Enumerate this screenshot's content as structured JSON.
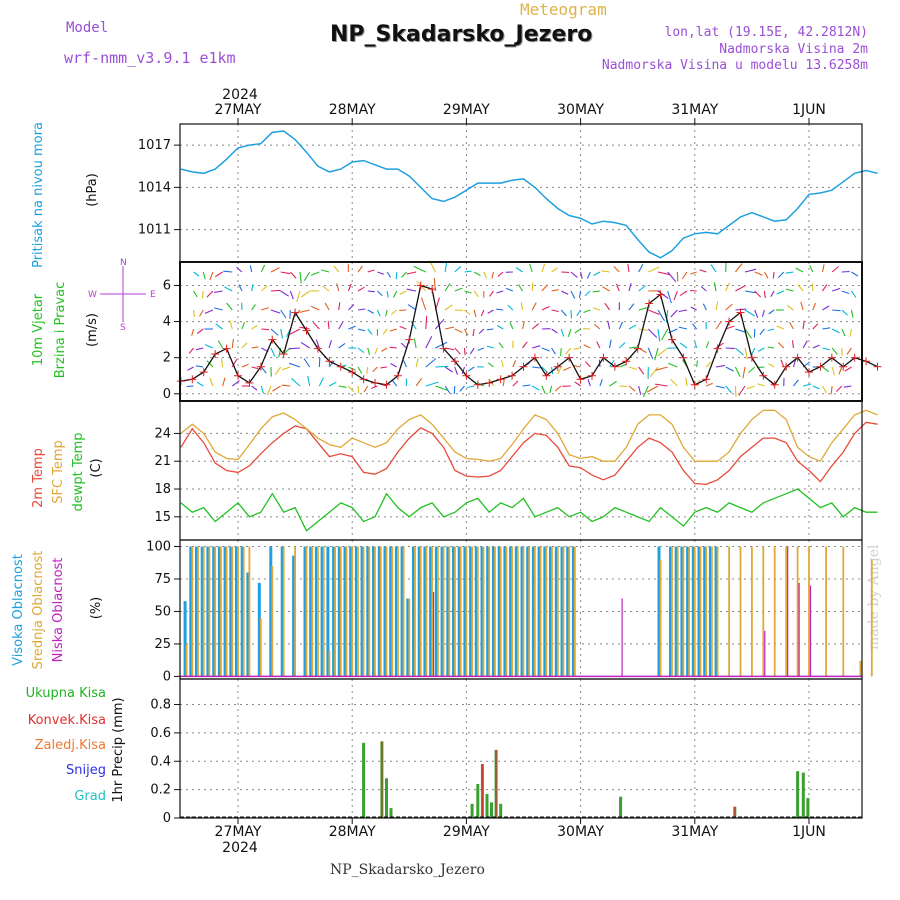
{
  "header": {
    "model_label": "Model",
    "model_name": "wrf-nmm_v3.9.1 e1km",
    "title": "NP_Skadarsko_Jezero",
    "meteogram_label": "Meteogram",
    "coords": "lon,lat (19.15E, 42.2812N)",
    "elevation": "Nadmorska Visina 2m",
    "model_elevation": "Nadmorska Visina u modelu 13.6258m"
  },
  "footer": {
    "station": "NP_Skadarsko_Jezero",
    "credit": "made by Angel"
  },
  "colors": {
    "pressure": "#1ea0e0",
    "t2m": "#e84a3a",
    "tsfc": "#e0a838",
    "dewpt": "#22c022",
    "high_cloud": "#1ea0e0",
    "mid_cloud": "#e0a838",
    "low_cloud": "#c020c0",
    "precip_total": "#3aa030",
    "precip_conv": "#e03030",
    "wind_speed": "#111111",
    "wind_pts": "#e02020"
  },
  "time_axis": {
    "year_top": "2024",
    "year_bottom": "2024",
    "days": [
      "27MAY",
      "28MAY",
      "29MAY",
      "30MAY",
      "31MAY",
      "1JUN"
    ]
  },
  "panel_pressure": {
    "label": "Pritisak na nivou mora",
    "unit": "(hPa)",
    "yticks": [
      "1011",
      "1014",
      "1017"
    ],
    "chart_data": {
      "type": "line",
      "ylim": [
        1008.7,
        1018.5
      ],
      "x_days": [
        -0.5,
        -0.4,
        -0.3,
        -0.2,
        -0.1,
        0.0,
        0.1,
        0.2,
        0.3,
        0.4,
        0.5,
        0.6,
        0.7,
        0.8,
        0.9,
        1.0,
        1.1,
        1.2,
        1.3,
        1.4,
        1.5,
        1.6,
        1.7,
        1.8,
        1.9,
        2.0,
        2.1,
        2.2,
        2.3,
        2.4,
        2.5,
        2.6,
        2.7,
        2.8,
        2.9,
        3.0,
        3.1,
        3.2,
        3.3,
        3.4,
        3.5,
        3.6,
        3.7,
        3.8,
        3.9,
        4.0,
        4.1,
        4.2,
        4.3,
        4.4,
        4.5,
        4.6,
        4.7,
        4.8,
        4.9,
        5.0,
        5.1,
        5.2,
        5.3,
        5.4,
        5.5,
        5.6
      ],
      "values": [
        1015.3,
        1015.1,
        1015.0,
        1015.3,
        1016.0,
        1016.8,
        1017.0,
        1017.1,
        1017.9,
        1018.0,
        1017.4,
        1016.5,
        1015.5,
        1015.1,
        1015.3,
        1015.8,
        1015.9,
        1015.6,
        1015.3,
        1015.3,
        1014.8,
        1014.0,
        1013.2,
        1013.0,
        1013.3,
        1013.8,
        1014.3,
        1014.3,
        1014.3,
        1014.5,
        1014.6,
        1014.0,
        1013.2,
        1012.5,
        1012.0,
        1011.8,
        1011.4,
        1011.6,
        1011.5,
        1011.3,
        1010.3,
        1009.4,
        1009.0,
        1009.5,
        1010.4,
        1010.7,
        1010.8,
        1010.7,
        1011.3,
        1011.9,
        1012.2,
        1011.9,
        1011.6,
        1011.7,
        1012.5,
        1013.5,
        1013.6,
        1013.8,
        1014.4,
        1015.0,
        1015.2,
        1015.0
      ]
    }
  },
  "panel_wind": {
    "label_line1": "10m Vjetar",
    "label_line2": "Brzina i Pravac",
    "unit": "(m/s)",
    "yticks": [
      "0",
      "2",
      "4",
      "6"
    ],
    "compass": {
      "n": "N",
      "s": "S",
      "w": "W",
      "e": "E"
    },
    "chart_data": {
      "type": "line",
      "ylim": [
        -0.4,
        7.3
      ],
      "x_days": [
        -0.5,
        -0.4,
        -0.3,
        -0.2,
        -0.1,
        0.0,
        0.1,
        0.2,
        0.3,
        0.4,
        0.5,
        0.6,
        0.7,
        0.8,
        0.9,
        1.0,
        1.1,
        1.2,
        1.3,
        1.4,
        1.5,
        1.6,
        1.7,
        1.8,
        1.9,
        2.0,
        2.1,
        2.2,
        2.3,
        2.4,
        2.5,
        2.6,
        2.7,
        2.8,
        2.9,
        3.0,
        3.1,
        3.2,
        3.3,
        3.4,
        3.5,
        3.6,
        3.7,
        3.8,
        3.9,
        4.0,
        4.1,
        4.2,
        4.3,
        4.4,
        4.5,
        4.6,
        4.7,
        4.8,
        4.9,
        5.0,
        5.1,
        5.2,
        5.3,
        5.4,
        5.5,
        5.6
      ],
      "values": [
        0.7,
        0.8,
        1.2,
        2.2,
        2.5,
        1.0,
        0.6,
        1.5,
        3.0,
        2.2,
        4.5,
        3.5,
        2.5,
        1.8,
        1.5,
        1.2,
        0.8,
        0.6,
        0.5,
        1.0,
        3.0,
        6.0,
        5.8,
        2.5,
        1.8,
        1.0,
        0.5,
        0.6,
        0.8,
        1.0,
        1.5,
        2.0,
        1.0,
        1.5,
        2.0,
        0.8,
        1.0,
        2.0,
        1.5,
        1.8,
        2.5,
        5.0,
        5.5,
        3.0,
        2.0,
        0.5,
        0.8,
        2.5,
        4.0,
        4.5,
        2.0,
        1.0,
        0.5,
        1.5,
        2.0,
        1.2,
        1.5,
        2.0,
        1.5,
        2.0,
        1.8,
        1.5
      ]
    }
  },
  "panel_temp": {
    "label_t2m": "2m Temp",
    "label_tsfc": "SFC Temp",
    "label_dewpt": "dewpt Temp",
    "unit": "(C)",
    "yticks": [
      "15",
      "18",
      "21",
      "24"
    ],
    "chart_data": {
      "type": "line",
      "ylim": [
        12.5,
        27.5
      ],
      "x_days": [
        -0.5,
        -0.4,
        -0.3,
        -0.2,
        -0.1,
        0.0,
        0.1,
        0.2,
        0.3,
        0.4,
        0.5,
        0.6,
        0.7,
        0.8,
        0.9,
        1.0,
        1.1,
        1.2,
        1.3,
        1.4,
        1.5,
        1.6,
        1.7,
        1.8,
        1.9,
        2.0,
        2.1,
        2.2,
        2.3,
        2.4,
        2.5,
        2.6,
        2.7,
        2.8,
        2.9,
        3.0,
        3.1,
        3.2,
        3.3,
        3.4,
        3.5,
        3.6,
        3.7,
        3.8,
        3.9,
        4.0,
        4.1,
        4.2,
        4.3,
        4.4,
        4.5,
        4.6,
        4.7,
        4.8,
        4.9,
        5.0,
        5.1,
        5.2,
        5.3,
        5.4,
        5.5,
        5.6
      ],
      "series": [
        {
          "name": "2m Temp",
          "values": [
            22.5,
            24.5,
            23.0,
            20.8,
            20.0,
            19.8,
            20.5,
            21.8,
            23.0,
            24.0,
            24.8,
            24.5,
            23.0,
            21.5,
            21.8,
            21.5,
            19.8,
            19.6,
            20.2,
            22.0,
            23.5,
            24.6,
            24.0,
            22.5,
            20.0,
            19.4,
            19.3,
            19.4,
            20.0,
            21.5,
            23.0,
            24.0,
            23.8,
            22.5,
            20.5,
            20.3,
            19.5,
            19.0,
            19.5,
            21.0,
            22.5,
            23.5,
            23.0,
            22.0,
            20.0,
            18.6,
            18.5,
            19.0,
            20.0,
            21.5,
            22.5,
            23.5,
            23.5,
            23.0,
            21.0,
            20.0,
            18.8,
            20.5,
            22.0,
            24.0,
            25.2,
            25.0
          ]
        },
        {
          "name": "SFC Temp",
          "values": [
            24.0,
            25.0,
            24.0,
            22.0,
            21.3,
            21.2,
            22.8,
            24.5,
            25.8,
            26.2,
            25.5,
            24.5,
            23.5,
            22.8,
            22.5,
            23.5,
            23.0,
            22.5,
            23.0,
            24.5,
            25.5,
            26.0,
            25.0,
            23.5,
            22.0,
            21.3,
            21.2,
            21.0,
            21.3,
            22.8,
            24.5,
            26.0,
            25.5,
            24.0,
            21.7,
            21.3,
            21.5,
            21.0,
            21.0,
            22.5,
            25.0,
            26.0,
            26.0,
            25.0,
            22.5,
            21.0,
            21.0,
            21.0,
            22.0,
            24.0,
            25.5,
            26.5,
            26.5,
            25.5,
            22.5,
            21.5,
            21.0,
            23.0,
            24.5,
            26.0,
            26.5,
            26.0
          ]
        },
        {
          "name": "dewpt Temp",
          "values": [
            16.5,
            15.5,
            16.0,
            14.5,
            15.5,
            16.5,
            15.0,
            15.5,
            17.5,
            15.5,
            16.0,
            13.5,
            14.5,
            15.5,
            16.5,
            16.0,
            14.5,
            15.0,
            17.5,
            16.0,
            15.0,
            16.0,
            16.5,
            15.0,
            15.5,
            16.5,
            17.0,
            15.5,
            16.5,
            16.0,
            17.0,
            15.0,
            15.5,
            16.0,
            15.0,
            15.5,
            14.5,
            15.0,
            16.0,
            15.5,
            15.0,
            14.5,
            16.0,
            15.0,
            14.0,
            15.5,
            16.0,
            15.5,
            16.5,
            16.0,
            15.5,
            16.5,
            17.0,
            17.5,
            18.0,
            17.0,
            16.0,
            16.5,
            15.0,
            16.0,
            15.5,
            15.5
          ]
        }
      ]
    }
  },
  "panel_cloud": {
    "label_high": "Visoka Oblacnost",
    "label_mid": "Srednja Oblacnost",
    "label_low": "Niska Oblacnost",
    "unit": "(%)",
    "yticks": [
      "0",
      "25",
      "50",
      "75",
      "100"
    ],
    "chart_data": {
      "type": "bar",
      "ylim": [
        -2,
        105
      ],
      "x_days": [
        -0.45,
        -0.4,
        -0.35,
        -0.3,
        -0.25,
        -0.2,
        -0.15,
        -0.1,
        -0.05,
        0.0,
        0.05,
        0.1,
        0.2,
        0.3,
        0.4,
        0.5,
        0.6,
        0.65,
        0.7,
        0.75,
        0.8,
        0.85,
        0.9,
        0.95,
        1.0,
        1.05,
        1.1,
        1.15,
        1.2,
        1.25,
        1.3,
        1.35,
        1.4,
        1.45,
        1.5,
        1.55,
        1.6,
        1.65,
        1.7,
        1.75,
        1.8,
        1.85,
        1.9,
        1.95,
        2.0,
        2.05,
        2.1,
        2.15,
        2.2,
        2.25,
        2.3,
        2.35,
        2.4,
        2.45,
        2.5,
        2.55,
        2.6,
        2.65,
        2.7,
        2.75,
        2.8,
        2.85,
        2.9,
        2.95,
        3.35,
        3.7,
        3.8,
        3.85,
        3.9,
        3.95,
        4.0,
        4.05,
        4.1,
        4.15,
        4.2,
        4.3,
        4.4,
        4.5,
        4.6,
        4.7,
        4.8,
        4.9,
        5.0,
        5.15,
        5.3,
        5.45,
        5.55
      ],
      "series": [
        {
          "name": "Visoka Oblacnost",
          "values": [
            58,
            100,
            100,
            100,
            100,
            100,
            100,
            100,
            100,
            100,
            100,
            80,
            72,
            100,
            100,
            93,
            100,
            100,
            100,
            100,
            100,
            100,
            100,
            100,
            100,
            100,
            100,
            100,
            100,
            100,
            100,
            100,
            100,
            100,
            60,
            100,
            100,
            100,
            100,
            100,
            100,
            100,
            100,
            100,
            100,
            100,
            100,
            100,
            100,
            100,
            100,
            100,
            100,
            100,
            100,
            100,
            100,
            100,
            100,
            100,
            100,
            100,
            100,
            100,
            0,
            100,
            100,
            100,
            100,
            100,
            100,
            100,
            100,
            100,
            100,
            0,
            0,
            0,
            0,
            0,
            0,
            0,
            0,
            0,
            0,
            0,
            0
          ]
        },
        {
          "name": "Srednja Oblacnost",
          "values": [
            25,
            100,
            100,
            100,
            100,
            100,
            100,
            100,
            100,
            100,
            100,
            100,
            45,
            85,
            100,
            100,
            100,
            100,
            100,
            100,
            20,
            100,
            100,
            100,
            100,
            100,
            100,
            100,
            100,
            100,
            100,
            100,
            100,
            100,
            60,
            100,
            100,
            100,
            100,
            100,
            100,
            100,
            100,
            100,
            100,
            100,
            100,
            100,
            100,
            100,
            100,
            100,
            100,
            100,
            100,
            100,
            100,
            100,
            100,
            100,
            100,
            100,
            100,
            100,
            0,
            90,
            100,
            100,
            100,
            100,
            100,
            100,
            100,
            100,
            100,
            100,
            100,
            100,
            100,
            100,
            100,
            100,
            100,
            100,
            100,
            12,
            90
          ]
        },
        {
          "name": "Niska Oblacnost",
          "values": [
            0,
            0,
            0,
            0,
            0,
            0,
            0,
            0,
            0,
            0,
            0,
            0,
            0,
            0,
            0,
            0,
            0,
            0,
            0,
            0,
            0,
            0,
            0,
            0,
            0,
            0,
            0,
            0,
            0,
            0,
            0,
            0,
            0,
            0,
            0,
            0,
            0,
            0,
            65,
            0,
            0,
            0,
            0,
            0,
            0,
            0,
            0,
            0,
            0,
            0,
            0,
            0,
            0,
            0,
            0,
            0,
            0,
            0,
            0,
            0,
            0,
            0,
            0,
            0,
            60,
            0,
            0,
            0,
            0,
            0,
            0,
            0,
            0,
            0,
            0,
            0,
            0,
            0,
            35,
            0,
            100,
            72,
            70,
            0,
            0,
            0,
            0
          ]
        }
      ]
    }
  },
  "panel_precip": {
    "label_total": "Ukupna Kisa",
    "label_conv": "Konvek.Kisa",
    "label_frz": "Zaledj.Kisa",
    "label_snow": "Snijeg",
    "label_grad": "Grad",
    "unit": "1hr Precip (mm)",
    "yticks": [
      "0",
      "0.2",
      "0.4",
      "0.6",
      "0.8"
    ],
    "chart_data": {
      "type": "bar",
      "ylim": [
        0,
        0.98
      ],
      "x_days": [
        -0.4,
        1.1,
        1.26,
        1.3,
        1.34,
        2.05,
        2.1,
        2.14,
        2.18,
        2.22,
        2.26,
        2.3,
        3.35,
        4.35,
        4.9,
        4.95,
        4.99
      ],
      "series": [
        {
          "name": "Ukupna Kisa",
          "values": [
            0.01,
            0.53,
            0.54,
            0.28,
            0.07,
            0.1,
            0.24,
            0.38,
            0.17,
            0.11,
            0.48,
            0.1,
            0.15,
            0.08,
            0.33,
            0.32,
            0.14
          ]
        },
        {
          "name": "Konvek.Kisa",
          "values": [
            0.0,
            0.0,
            0.54,
            0.0,
            0.0,
            0.0,
            0.0,
            0.38,
            0.0,
            0.0,
            0.48,
            0.0,
            0.0,
            0.08,
            0.0,
            0.0,
            0.0
          ]
        }
      ]
    }
  }
}
